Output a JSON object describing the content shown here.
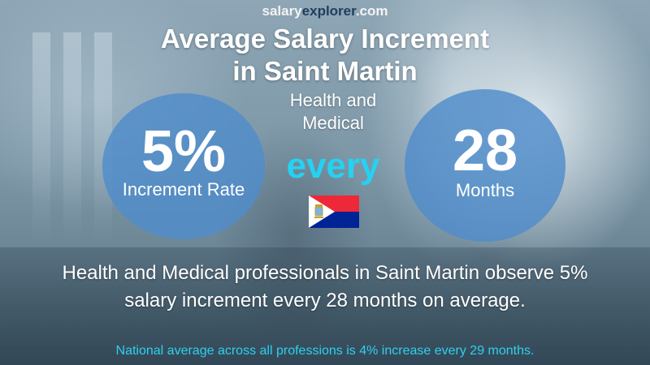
{
  "brand": {
    "part1": "salary",
    "part2": "explorer",
    "part3": ".com"
  },
  "title": {
    "line1": "Average Salary Increment",
    "line2": "in Saint Martin"
  },
  "subtitle": {
    "line1": "Health and",
    "line2": "Medical"
  },
  "increment": {
    "value": "5%",
    "label": "Increment Rate"
  },
  "connector": "every",
  "period": {
    "value": "28",
    "label": "Months"
  },
  "flag": {
    "icon": "saint-martin-flag-icon",
    "colors": {
      "top": "#ED2939",
      "bottom": "#002395",
      "triangle": "#FFFFFF"
    }
  },
  "description": {
    "line1": "Health and Medical professionals in Saint Martin observe 5%",
    "line2": "salary increment every 28 months on average."
  },
  "national_note": "National average across all professions is 4% increase every 29 months.",
  "colors": {
    "circle": "#4F8CCB",
    "accent": "#24D2F2",
    "brand_dark": "#1F3D5C"
  }
}
